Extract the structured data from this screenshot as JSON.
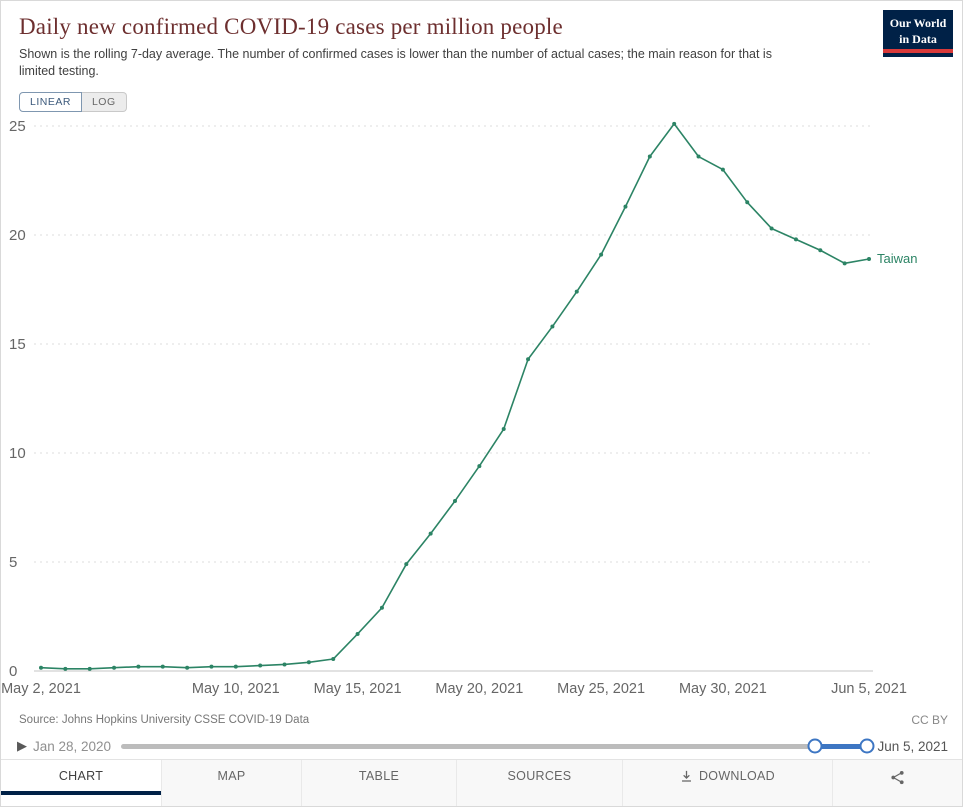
{
  "header": {
    "title": "Daily new confirmed COVID-19 cases per million people",
    "subtitle": "Shown is the rolling 7-day average. The number of confirmed cases is lower than the number of actual cases; the main reason for that is limited testing.",
    "logo_line1": "Our World",
    "logo_line2": "in Data"
  },
  "scale_toggle": {
    "linear": "LINEAR",
    "log": "LOG"
  },
  "chart_data": {
    "type": "line",
    "title": "Daily new confirmed COVID-19 cases per million people",
    "x": [
      "2021-05-02",
      "2021-05-03",
      "2021-05-04",
      "2021-05-05",
      "2021-05-06",
      "2021-05-07",
      "2021-05-08",
      "2021-05-09",
      "2021-05-10",
      "2021-05-11",
      "2021-05-12",
      "2021-05-13",
      "2021-05-14",
      "2021-05-15",
      "2021-05-16",
      "2021-05-17",
      "2021-05-18",
      "2021-05-19",
      "2021-05-20",
      "2021-05-21",
      "2021-05-22",
      "2021-05-23",
      "2021-05-24",
      "2021-05-25",
      "2021-05-26",
      "2021-05-27",
      "2021-05-28",
      "2021-05-29",
      "2021-05-30",
      "2021-05-31",
      "2021-06-01",
      "2021-06-02",
      "2021-06-03",
      "2021-06-04",
      "2021-06-05"
    ],
    "series": [
      {
        "name": "Taiwan",
        "color": "#2C8465",
        "values": [
          0.15,
          0.1,
          0.1,
          0.15,
          0.2,
          0.2,
          0.15,
          0.2,
          0.2,
          0.25,
          0.3,
          0.4,
          0.55,
          1.7,
          2.9,
          4.9,
          6.3,
          7.8,
          9.4,
          11.1,
          14.3,
          15.8,
          17.4,
          19.1,
          21.3,
          23.6,
          25.1,
          23.6,
          23.0,
          21.5,
          20.3,
          19.8,
          19.3,
          18.7,
          18.9
        ]
      }
    ],
    "ylim": [
      0,
      25
    ],
    "y_ticks": [
      0,
      5,
      10,
      15,
      20,
      25
    ],
    "x_tick_indices": [
      0,
      8,
      13,
      18,
      23,
      28,
      34
    ],
    "x_tick_labels": [
      "May 2, 2021",
      "May 10, 2021",
      "May 15, 2021",
      "May 20, 2021",
      "May 25, 2021",
      "May 30, 2021",
      "Jun 5, 2021"
    ],
    "grid": "horizontal-dashed",
    "legend_position": "end-of-line"
  },
  "footer": {
    "source": "Source: Johns Hopkins University CSSE COVID-19 Data",
    "license": "CC BY"
  },
  "timeline": {
    "play_icon": "▶",
    "start": "Jan 28, 2020",
    "end": "Jun 5, 2021",
    "selection_start_pct": 93,
    "selection_end_pct": 100
  },
  "tabs": [
    {
      "label": "CHART",
      "active": true
    },
    {
      "label": "MAP",
      "active": false
    },
    {
      "label": "TABLE",
      "active": false
    },
    {
      "label": "SOURCES",
      "active": false
    },
    {
      "label": "DOWNLOAD",
      "active": false
    }
  ],
  "colors": {
    "accent_blue": "#3d76c3",
    "navy": "#002147",
    "series_green": "#2C8465",
    "title_red": "#6d2f2f",
    "grid_gray": "#dcdcdc"
  }
}
